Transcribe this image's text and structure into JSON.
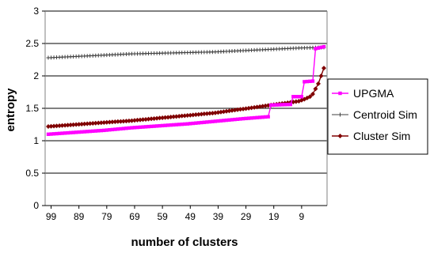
{
  "chart_data": {
    "type": "line",
    "title": "",
    "xlabel": "number of clusters",
    "ylabel": "entropy",
    "x_tick_labels": [
      "99",
      "89",
      "79",
      "69",
      "59",
      "49",
      "39",
      "29",
      "19",
      "9"
    ],
    "y_tick_labels": [
      "0",
      "0.5",
      "1",
      "1.5",
      "2",
      "2.5",
      "3"
    ],
    "ylim": [
      0,
      3
    ],
    "xlim": [
      100,
      1
    ],
    "x_direction": "descending",
    "grid": "horizontal",
    "legend_position": "right",
    "series": [
      {
        "name": "UPGMA",
        "color": "#ff00ff",
        "marker": "square",
        "x": [
          100,
          90,
          80,
          70,
          60,
          50,
          40,
          30,
          21,
          20,
          13,
          12,
          9,
          8,
          5,
          4,
          3,
          2,
          1
        ],
        "y": [
          1.1,
          1.13,
          1.16,
          1.2,
          1.23,
          1.26,
          1.3,
          1.34,
          1.37,
          1.55,
          1.56,
          1.68,
          1.68,
          1.91,
          1.92,
          2.42,
          2.43,
          2.44,
          2.45
        ]
      },
      {
        "name": "Centroid Sim",
        "color": "#404040",
        "marker": "cross",
        "x": [
          100,
          90,
          80,
          70,
          60,
          50,
          40,
          30,
          20,
          10,
          1
        ],
        "y": [
          2.28,
          2.3,
          2.32,
          2.34,
          2.35,
          2.36,
          2.37,
          2.39,
          2.41,
          2.43,
          2.44
        ]
      },
      {
        "name": "Cluster Sim",
        "color": "#800000",
        "marker": "diamond",
        "x": [
          100,
          90,
          80,
          70,
          60,
          50,
          40,
          30,
          20,
          15,
          10,
          8,
          6,
          5,
          4,
          3,
          2,
          1
        ],
        "y": [
          1.22,
          1.25,
          1.28,
          1.31,
          1.35,
          1.39,
          1.43,
          1.49,
          1.55,
          1.58,
          1.61,
          1.64,
          1.68,
          1.72,
          1.8,
          1.88,
          2.0,
          2.12
        ]
      }
    ]
  }
}
